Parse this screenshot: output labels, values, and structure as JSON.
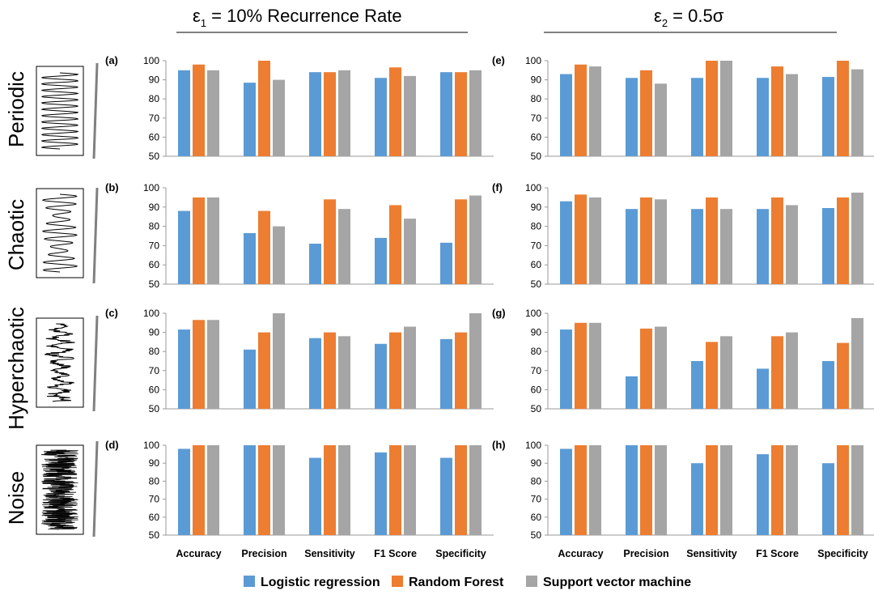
{
  "column_titles": [
    {
      "eps": "ε",
      "sub": "1",
      "rest": " =  10% Recurrence Rate"
    },
    {
      "eps": "ε",
      "sub": "2",
      "rest": " =  0.5σ"
    }
  ],
  "row_labels": [
    "Periodic",
    "Chaotic",
    "Hyperchaotic",
    "Noise"
  ],
  "legend": [
    {
      "label": "Logistic regression",
      "color": "#5B9BD5"
    },
    {
      "label": "Random Forest",
      "color": "#ED7D31"
    },
    {
      "label": "Support vector machine",
      "color": "#A5A5A5"
    }
  ],
  "chart_data": [
    {
      "panel": "(a)",
      "type": "bar",
      "categories": [
        "Accuracy",
        "Precision",
        "Sensitivity",
        "F1 Score",
        "Specificity"
      ],
      "ylim": [
        50,
        100
      ],
      "yticks": [
        50,
        60,
        70,
        80,
        90,
        100
      ],
      "series": [
        {
          "name": "Logistic regression",
          "values": [
            95,
            88.5,
            94,
            91,
            94
          ]
        },
        {
          "name": "Random Forest",
          "values": [
            98,
            100,
            94,
            96.5,
            94
          ]
        },
        {
          "name": "Support vector machine",
          "values": [
            95,
            90,
            95,
            92,
            95
          ]
        }
      ]
    },
    {
      "panel": "(b)",
      "type": "bar",
      "categories": [
        "Accuracy",
        "Precision",
        "Sensitivity",
        "F1 Score",
        "Specificity"
      ],
      "ylim": [
        50,
        100
      ],
      "yticks": [
        50,
        60,
        70,
        80,
        90,
        100
      ],
      "series": [
        {
          "name": "Logistic regression",
          "values": [
            88,
            76.5,
            71,
            74,
            71.5
          ]
        },
        {
          "name": "Random Forest",
          "values": [
            95,
            88,
            94,
            91,
            94
          ]
        },
        {
          "name": "Support vector machine",
          "values": [
            95,
            80,
            89,
            84,
            96
          ]
        }
      ]
    },
    {
      "panel": "(c)",
      "type": "bar",
      "categories": [
        "Accuracy",
        "Precision",
        "Sensitivity",
        "F1 Score",
        "Specificity"
      ],
      "ylim": [
        50,
        100
      ],
      "yticks": [
        50,
        60,
        70,
        80,
        90,
        100
      ],
      "series": [
        {
          "name": "Logistic regression",
          "values": [
            91.5,
            81,
            87,
            84,
            86.5
          ]
        },
        {
          "name": "Random Forest",
          "values": [
            96.5,
            90,
            90,
            90,
            90
          ]
        },
        {
          "name": "Support vector machine",
          "values": [
            96.5,
            100,
            88,
            93,
            100
          ]
        }
      ]
    },
    {
      "panel": "(d)",
      "type": "bar",
      "categories": [
        "Accuracy",
        "Precision",
        "Sensitivity",
        "F1 Score",
        "Specificity"
      ],
      "ylim": [
        50,
        100
      ],
      "yticks": [
        50,
        60,
        70,
        80,
        90,
        100
      ],
      "series": [
        {
          "name": "Logistic regression",
          "values": [
            98,
            100,
            93,
            96,
            93
          ]
        },
        {
          "name": "Random Forest",
          "values": [
            100,
            100,
            100,
            100,
            100
          ]
        },
        {
          "name": "Support vector machine",
          "values": [
            100,
            100,
            100,
            100,
            100
          ]
        }
      ]
    },
    {
      "panel": "(e)",
      "type": "bar",
      "categories": [
        "Accuracy",
        "Precision",
        "Sensitivity",
        "F1 Score",
        "Specificity"
      ],
      "ylim": [
        50,
        100
      ],
      "yticks": [
        50,
        60,
        70,
        80,
        90,
        100
      ],
      "series": [
        {
          "name": "Logistic regression",
          "values": [
            93,
            91,
            91,
            91,
            91.5
          ]
        },
        {
          "name": "Random Forest",
          "values": [
            98,
            95,
            100,
            97,
            100
          ]
        },
        {
          "name": "Support vector machine",
          "values": [
            97,
            88,
            100,
            93,
            95.5
          ]
        }
      ]
    },
    {
      "panel": "(f)",
      "type": "bar",
      "categories": [
        "Accuracy",
        "Precision",
        "Sensitivity",
        "F1 Score",
        "Specificity"
      ],
      "ylim": [
        50,
        100
      ],
      "yticks": [
        50,
        60,
        70,
        80,
        90,
        100
      ],
      "series": [
        {
          "name": "Logistic regression",
          "values": [
            93,
            89,
            89,
            89,
            89.5
          ]
        },
        {
          "name": "Random Forest",
          "values": [
            96.5,
            95,
            95,
            95,
            95
          ]
        },
        {
          "name": "Support vector machine",
          "values": [
            95,
            94,
            89,
            91,
            97.5
          ]
        }
      ]
    },
    {
      "panel": "(g)",
      "type": "bar",
      "categories": [
        "Accuracy",
        "Precision",
        "Sensitivity",
        "F1 Score",
        "Specificity"
      ],
      "ylim": [
        50,
        100
      ],
      "yticks": [
        50,
        60,
        70,
        80,
        90,
        100
      ],
      "series": [
        {
          "name": "Logistic regression",
          "values": [
            91.5,
            67,
            75,
            71,
            75
          ]
        },
        {
          "name": "Random Forest",
          "values": [
            95,
            92,
            85,
            88,
            84.5
          ]
        },
        {
          "name": "Support vector machine",
          "values": [
            95,
            93,
            88,
            90,
            97.5
          ]
        }
      ]
    },
    {
      "panel": "(h)",
      "type": "bar",
      "categories": [
        "Accuracy",
        "Precision",
        "Sensitivity",
        "F1 Score",
        "Specificity"
      ],
      "ylim": [
        50,
        100
      ],
      "yticks": [
        50,
        60,
        70,
        80,
        90,
        100
      ],
      "series": [
        {
          "name": "Logistic regression",
          "values": [
            98,
            100,
            90,
            95,
            90
          ]
        },
        {
          "name": "Random Forest",
          "values": [
            100,
            100,
            100,
            100,
            100
          ]
        },
        {
          "name": "Support vector machine",
          "values": [
            100,
            100,
            100,
            100,
            100
          ]
        }
      ]
    }
  ]
}
